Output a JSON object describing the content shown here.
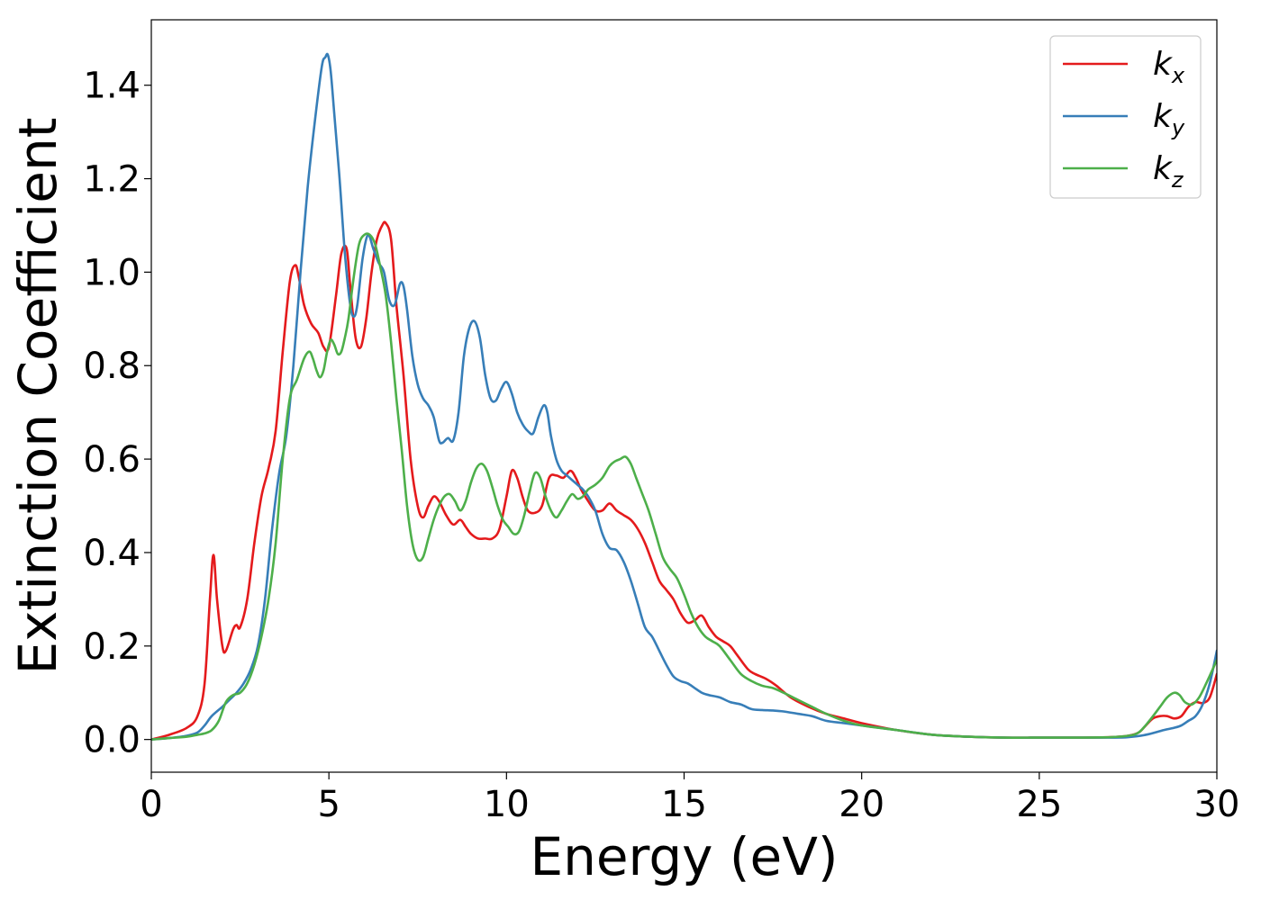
{
  "chart_data": {
    "type": "line",
    "title": "",
    "xlabel": "Energy (eV)",
    "ylabel": "Extinction Coefficient",
    "xlim": [
      0,
      30
    ],
    "ylim": [
      -0.07,
      1.54
    ],
    "xticks": [
      0,
      5,
      10,
      15,
      20,
      25,
      30
    ],
    "yticks": [
      0.0,
      0.2,
      0.4,
      0.6,
      0.8,
      1.0,
      1.2,
      1.4
    ],
    "xtick_labels": [
      "0",
      "5",
      "10",
      "15",
      "20",
      "25",
      "30"
    ],
    "ytick_labels": [
      "0.0",
      "0.2",
      "0.4",
      "0.6",
      "0.8",
      "1.0",
      "1.2",
      "1.4"
    ],
    "grid": false,
    "legend_position": "top-right",
    "series": [
      {
        "name": "k_x",
        "label_base": "k",
        "label_sub": "x",
        "color": "#e41a1c",
        "x": [
          0,
          0.5,
          1.0,
          1.3,
          1.5,
          1.65,
          1.75,
          1.85,
          2.0,
          2.1,
          2.3,
          2.4,
          2.5,
          2.7,
          2.9,
          3.1,
          3.3,
          3.5,
          3.7,
          3.9,
          4.05,
          4.15,
          4.3,
          4.5,
          4.7,
          4.85,
          5.0,
          5.2,
          5.35,
          5.5,
          5.6,
          5.75,
          5.9,
          6.05,
          6.2,
          6.35,
          6.5,
          6.6,
          6.75,
          6.9,
          7.1,
          7.3,
          7.5,
          7.65,
          7.8,
          7.95,
          8.1,
          8.3,
          8.5,
          8.7,
          8.85,
          9.0,
          9.2,
          9.4,
          9.6,
          9.8,
          10.0,
          10.15,
          10.3,
          10.45,
          10.6,
          10.8,
          11.0,
          11.2,
          11.4,
          11.6,
          11.8,
          11.95,
          12.1,
          12.3,
          12.5,
          12.7,
          12.9,
          13.1,
          13.3,
          13.5,
          13.7,
          13.9,
          14.1,
          14.3,
          14.5,
          14.7,
          14.9,
          15.1,
          15.3,
          15.5,
          15.7,
          15.9,
          16.1,
          16.3,
          16.5,
          16.8,
          17.0,
          17.3,
          17.6,
          18.0,
          18.5,
          19.0,
          19.5,
          20.0,
          21.0,
          22.0,
          23.0,
          24.0,
          25.0,
          26.0,
          27.0,
          27.5,
          27.8,
          28.0,
          28.2,
          28.4,
          28.6,
          28.8,
          29.0,
          29.2,
          29.4,
          29.6,
          29.8,
          30.0
        ],
        "y": [
          0.0,
          0.01,
          0.025,
          0.05,
          0.12,
          0.3,
          0.395,
          0.3,
          0.2,
          0.19,
          0.235,
          0.245,
          0.24,
          0.3,
          0.42,
          0.52,
          0.58,
          0.66,
          0.83,
          0.98,
          1.015,
          0.99,
          0.93,
          0.89,
          0.87,
          0.84,
          0.84,
          0.95,
          1.04,
          1.05,
          0.97,
          0.86,
          0.84,
          0.9,
          1.0,
          1.07,
          1.1,
          1.105,
          1.07,
          0.93,
          0.78,
          0.6,
          0.5,
          0.475,
          0.5,
          0.52,
          0.51,
          0.48,
          0.46,
          0.47,
          0.455,
          0.44,
          0.43,
          0.43,
          0.43,
          0.45,
          0.52,
          0.575,
          0.56,
          0.52,
          0.49,
          0.485,
          0.5,
          0.56,
          0.565,
          0.56,
          0.575,
          0.56,
          0.535,
          0.51,
          0.49,
          0.49,
          0.505,
          0.49,
          0.48,
          0.47,
          0.45,
          0.42,
          0.38,
          0.34,
          0.32,
          0.3,
          0.27,
          0.25,
          0.255,
          0.265,
          0.24,
          0.22,
          0.21,
          0.2,
          0.18,
          0.15,
          0.14,
          0.13,
          0.115,
          0.09,
          0.07,
          0.055,
          0.045,
          0.035,
          0.02,
          0.01,
          0.006,
          0.004,
          0.004,
          0.004,
          0.005,
          0.008,
          0.015,
          0.03,
          0.045,
          0.05,
          0.05,
          0.045,
          0.05,
          0.07,
          0.08,
          0.078,
          0.09,
          0.14
        ]
      },
      {
        "name": "k_y",
        "label_base": "k",
        "label_sub": "y",
        "color": "#377eb8",
        "x": [
          0,
          0.5,
          1.0,
          1.3,
          1.5,
          1.7,
          2.0,
          2.2,
          2.4,
          2.6,
          2.8,
          3.0,
          3.2,
          3.4,
          3.6,
          3.8,
          4.0,
          4.2,
          4.4,
          4.6,
          4.8,
          4.9,
          4.97,
          5.05,
          5.15,
          5.3,
          5.45,
          5.6,
          5.7,
          5.8,
          5.95,
          6.1,
          6.25,
          6.4,
          6.55,
          6.7,
          6.85,
          7.0,
          7.1,
          7.2,
          7.35,
          7.5,
          7.65,
          7.8,
          7.95,
          8.1,
          8.2,
          8.35,
          8.5,
          8.65,
          8.8,
          8.95,
          9.1,
          9.25,
          9.4,
          9.55,
          9.7,
          9.85,
          10.0,
          10.15,
          10.3,
          10.45,
          10.6,
          10.75,
          10.9,
          11.05,
          11.15,
          11.25,
          11.4,
          11.55,
          11.7,
          11.85,
          12.0,
          12.15,
          12.3,
          12.5,
          12.7,
          12.9,
          13.1,
          13.3,
          13.5,
          13.7,
          13.9,
          14.1,
          14.3,
          14.5,
          14.7,
          14.9,
          15.1,
          15.3,
          15.5,
          15.7,
          16.0,
          16.3,
          16.6,
          16.9,
          17.2,
          17.5,
          17.8,
          18.2,
          18.6,
          19.0,
          19.5,
          20.0,
          21.0,
          22.0,
          23.0,
          24.0,
          25.0,
          26.0,
          27.0,
          27.5,
          28.0,
          28.5,
          28.8,
          29.0,
          29.2,
          29.4,
          29.6,
          29.8,
          30.0
        ],
        "y": [
          0.0,
          0.003,
          0.008,
          0.015,
          0.03,
          0.05,
          0.07,
          0.085,
          0.1,
          0.12,
          0.15,
          0.2,
          0.3,
          0.45,
          0.57,
          0.65,
          0.8,
          1.0,
          1.18,
          1.32,
          1.44,
          1.46,
          1.465,
          1.43,
          1.34,
          1.2,
          1.04,
          0.93,
          0.905,
          0.93,
          1.03,
          1.08,
          1.05,
          1.02,
          1.0,
          0.94,
          0.93,
          0.975,
          0.97,
          0.92,
          0.82,
          0.76,
          0.73,
          0.715,
          0.69,
          0.64,
          0.635,
          0.645,
          0.64,
          0.7,
          0.82,
          0.88,
          0.895,
          0.86,
          0.78,
          0.73,
          0.725,
          0.75,
          0.765,
          0.74,
          0.7,
          0.675,
          0.66,
          0.655,
          0.69,
          0.715,
          0.7,
          0.65,
          0.6,
          0.575,
          0.565,
          0.555,
          0.545,
          0.535,
          0.52,
          0.49,
          0.44,
          0.41,
          0.405,
          0.38,
          0.34,
          0.29,
          0.24,
          0.22,
          0.19,
          0.16,
          0.135,
          0.125,
          0.12,
          0.11,
          0.1,
          0.095,
          0.09,
          0.08,
          0.075,
          0.065,
          0.063,
          0.062,
          0.06,
          0.055,
          0.05,
          0.04,
          0.035,
          0.03,
          0.02,
          0.01,
          0.006,
          0.004,
          0.004,
          0.004,
          0.004,
          0.005,
          0.01,
          0.02,
          0.025,
          0.03,
          0.04,
          0.05,
          0.075,
          0.12,
          0.19
        ]
      },
      {
        "name": "k_z",
        "label_base": "k",
        "label_sub": "z",
        "color": "#4daf4a",
        "x": [
          0,
          0.5,
          1.0,
          1.3,
          1.5,
          1.7,
          1.9,
          2.1,
          2.3,
          2.5,
          2.7,
          2.9,
          3.1,
          3.3,
          3.5,
          3.7,
          3.9,
          4.1,
          4.3,
          4.45,
          4.55,
          4.65,
          4.75,
          4.85,
          4.95,
          5.05,
          5.15,
          5.25,
          5.35,
          5.45,
          5.55,
          5.7,
          5.85,
          6.0,
          6.15,
          6.3,
          6.45,
          6.6,
          6.75,
          6.9,
          7.05,
          7.2,
          7.35,
          7.5,
          7.65,
          7.8,
          7.95,
          8.1,
          8.25,
          8.4,
          8.55,
          8.7,
          8.85,
          9.0,
          9.15,
          9.3,
          9.45,
          9.6,
          9.75,
          9.9,
          10.05,
          10.2,
          10.35,
          10.5,
          10.65,
          10.8,
          10.95,
          11.1,
          11.25,
          11.4,
          11.55,
          11.7,
          11.85,
          12.0,
          12.15,
          12.3,
          12.5,
          12.7,
          12.9,
          13.05,
          13.2,
          13.35,
          13.5,
          13.65,
          13.8,
          14.0,
          14.2,
          14.4,
          14.6,
          14.8,
          15.0,
          15.2,
          15.4,
          15.6,
          15.8,
          16.0,
          16.3,
          16.6,
          16.9,
          17.2,
          17.5,
          17.8,
          18.2,
          18.6,
          19.0,
          19.5,
          20.0,
          21.0,
          22.0,
          23.0,
          24.0,
          25.0,
          26.0,
          27.0,
          27.5,
          27.8,
          28.1,
          28.4,
          28.6,
          28.8,
          28.95,
          29.1,
          29.3,
          29.5,
          29.7,
          30.0
        ],
        "y": [
          0.0,
          0.003,
          0.006,
          0.01,
          0.013,
          0.02,
          0.04,
          0.08,
          0.095,
          0.1,
          0.12,
          0.16,
          0.22,
          0.3,
          0.42,
          0.6,
          0.73,
          0.77,
          0.815,
          0.83,
          0.815,
          0.79,
          0.775,
          0.79,
          0.83,
          0.855,
          0.845,
          0.825,
          0.83,
          0.86,
          0.9,
          0.99,
          1.06,
          1.08,
          1.08,
          1.06,
          1.01,
          0.95,
          0.85,
          0.73,
          0.62,
          0.5,
          0.42,
          0.385,
          0.39,
          0.43,
          0.47,
          0.5,
          0.52,
          0.525,
          0.51,
          0.49,
          0.51,
          0.55,
          0.58,
          0.59,
          0.575,
          0.54,
          0.5,
          0.47,
          0.455,
          0.44,
          0.445,
          0.48,
          0.53,
          0.57,
          0.56,
          0.52,
          0.49,
          0.475,
          0.49,
          0.51,
          0.525,
          0.515,
          0.52,
          0.535,
          0.545,
          0.56,
          0.585,
          0.595,
          0.6,
          0.605,
          0.59,
          0.56,
          0.53,
          0.49,
          0.44,
          0.39,
          0.365,
          0.345,
          0.31,
          0.27,
          0.24,
          0.22,
          0.21,
          0.2,
          0.17,
          0.14,
          0.125,
          0.115,
          0.11,
          0.1,
          0.085,
          0.07,
          0.055,
          0.04,
          0.03,
          0.02,
          0.01,
          0.006,
          0.004,
          0.004,
          0.004,
          0.005,
          0.008,
          0.015,
          0.04,
          0.07,
          0.09,
          0.1,
          0.095,
          0.08,
          0.075,
          0.09,
          0.12,
          0.17
        ]
      }
    ]
  }
}
